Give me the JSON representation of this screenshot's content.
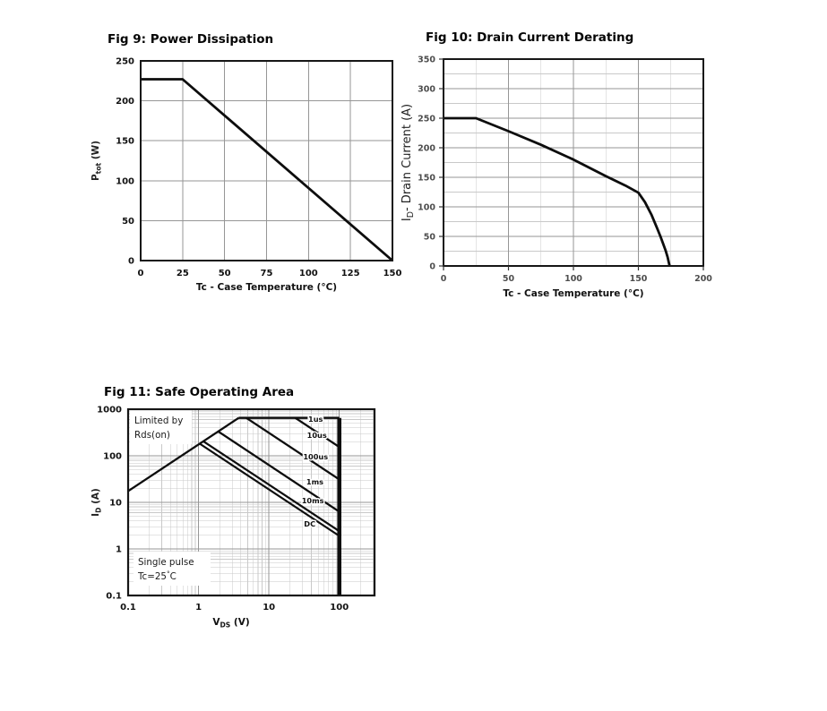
{
  "page": {
    "background": "#ffffff"
  },
  "colors": {
    "curve": "#0d0d0d",
    "border": "#161616",
    "grid_major": "#969696",
    "grid_minor": "#c9c9c9",
    "tick_dark": "#111111",
    "tick_gray": "#4d4d4d",
    "annotation_text": "#1a1a1a"
  },
  "chart_data": [
    {
      "id": "fig9",
      "type": "line",
      "title": "Fig 9: Power Dissipation",
      "xlabel_parts": [
        {
          "t": "Tc - Case Temperature (°C)"
        }
      ],
      "ylabel_parts": [
        {
          "t": "P"
        },
        {
          "t": "tot",
          "sub": true
        },
        {
          "t": " (W)"
        }
      ],
      "xlim": [
        0,
        150
      ],
      "ylim": [
        0,
        250
      ],
      "xticks": [
        {
          "v": 0,
          "l": "0"
        },
        {
          "v": 25,
          "l": "25"
        },
        {
          "v": 50,
          "l": "50"
        },
        {
          "v": 75,
          "l": "75"
        },
        {
          "v": 100,
          "l": "100"
        },
        {
          "v": 125,
          "l": "125"
        },
        {
          "v": 150,
          "l": "150"
        }
      ],
      "yticks": [
        {
          "v": 0,
          "l": "0"
        },
        {
          "v": 50,
          "l": "50"
        },
        {
          "v": 100,
          "l": "100"
        },
        {
          "v": 150,
          "l": "150"
        },
        {
          "v": 200,
          "l": "200"
        },
        {
          "v": 250,
          "l": "250"
        }
      ],
      "grid": "major-only",
      "series": [
        {
          "name": "power-dissipation",
          "points": [
            [
              0,
              227
            ],
            [
              25,
              227
            ],
            [
              150,
              0
            ]
          ]
        }
      ]
    },
    {
      "id": "fig10",
      "type": "line",
      "title": "Fig 10: Drain Current Derating",
      "xlabel_parts": [
        {
          "t": "Tc - Case Temperature (°C)"
        }
      ],
      "ylabel_parts": [
        {
          "t": "I"
        },
        {
          "t": "D",
          "sub": true
        },
        {
          "t": "- Drain Current (A)"
        }
      ],
      "xlim": [
        0,
        200
      ],
      "ylim": [
        0,
        350
      ],
      "xticks": [
        {
          "v": 0,
          "l": "0"
        },
        {
          "v": 50,
          "l": "50"
        },
        {
          "v": 100,
          "l": "100"
        },
        {
          "v": 150,
          "l": "150"
        },
        {
          "v": 200,
          "l": "200"
        }
      ],
      "yticks": [
        {
          "v": 0,
          "l": "0"
        },
        {
          "v": 50,
          "l": "50"
        },
        {
          "v": 100,
          "l": "100"
        },
        {
          "v": 150,
          "l": "150"
        },
        {
          "v": 200,
          "l": "200"
        },
        {
          "v": 250,
          "l": "250"
        },
        {
          "v": 300,
          "l": "300"
        },
        {
          "v": 350,
          "l": "350"
        }
      ],
      "minor_step_x": 25,
      "minor_step_y": 25,
      "grid": "major-minor",
      "series": [
        {
          "name": "drain-current-derating",
          "points": [
            [
              0,
              250
            ],
            [
              25,
              250
            ],
            [
              50,
              228
            ],
            [
              75,
              205
            ],
            [
              100,
              180
            ],
            [
              125,
              152
            ],
            [
              140,
              136
            ],
            [
              150,
              124
            ],
            [
              155,
              108
            ],
            [
              160,
              87
            ],
            [
              164,
              66
            ],
            [
              167,
              50
            ],
            [
              169,
              38
            ],
            [
              171,
              26
            ],
            [
              172.5,
              15
            ],
            [
              174,
              0
            ]
          ]
        }
      ]
    },
    {
      "id": "fig11",
      "type": "line",
      "scale": "log",
      "title": "Fig 11: Safe Operating Area",
      "xlabel_parts": [
        {
          "t": "V"
        },
        {
          "t": "DS",
          "sub": true
        },
        {
          "t": " (V)"
        }
      ],
      "ylabel_parts": [
        {
          "t": "I"
        },
        {
          "t": "D",
          "sub": true
        },
        {
          "t": " (A)"
        }
      ],
      "xlim": [
        0.1,
        316
      ],
      "ylim": [
        0.1,
        1000
      ],
      "xticks": [
        {
          "v": 0.1,
          "l": "0.1"
        },
        {
          "v": 1,
          "l": "1"
        },
        {
          "v": 10,
          "l": "10"
        },
        {
          "v": 100,
          "l": "100"
        }
      ],
      "yticks": [
        {
          "v": 0.1,
          "l": "0.1"
        },
        {
          "v": 1,
          "l": "1"
        },
        {
          "v": 10,
          "l": "10"
        },
        {
          "v": 100,
          "l": "100"
        },
        {
          "v": 1000,
          "l": "1000"
        }
      ],
      "grid": "log-full",
      "series": [
        {
          "name": "rds-on-limit",
          "points": [
            [
              0.1,
              17.5
            ],
            [
              3.72,
              650
            ]
          ]
        },
        {
          "name": "pulse-1us",
          "points": [
            [
              3.72,
              650
            ],
            [
              100,
              650
            ]
          ],
          "label": {
            "text": "1us",
            "x": 46,
            "y": 540
          }
        },
        {
          "name": "pulse-10us",
          "points": [
            [
              23.7,
              650
            ],
            [
              100,
              154
            ]
          ],
          "label": {
            "text": "10us",
            "x": 48,
            "y": 245
          }
        },
        {
          "name": "pulse-100us",
          "points": [
            [
              4.77,
              650
            ],
            [
              100,
              31
            ]
          ],
          "label": {
            "text": "100us",
            "x": 46,
            "y": 84
          }
        },
        {
          "name": "pulse-1ms",
          "points": [
            [
              1.9,
              333
            ],
            [
              100,
              6.3
            ]
          ],
          "label": {
            "text": "1ms",
            "x": 45,
            "y": 24
          }
        },
        {
          "name": "pulse-10ms",
          "points": [
            [
              1.17,
              205
            ],
            [
              100,
              2.4
            ]
          ],
          "label": {
            "text": "10ms",
            "x": 42,
            "y": 9.5
          }
        },
        {
          "name": "dc",
          "points": [
            [
              1.04,
              182
            ],
            [
              100,
              1.9
            ]
          ],
          "label": {
            "text": "DC",
            "x": 38,
            "y": 3.0
          }
        },
        {
          "name": "voltage-limit",
          "points": [
            [
              100,
              650
            ],
            [
              100,
              0.1
            ]
          ]
        }
      ],
      "annotations": [
        {
          "name": "rds-limit-note",
          "lines": [
            [
              {
                "t": "Limited by"
              }
            ],
            [
              {
                "t": "Rds(on)"
              }
            ]
          ]
        },
        {
          "name": "pulse-condition-note",
          "lines": [
            [
              {
                "t": "Single pulse"
              }
            ],
            [
              {
                "t": "Tc=25"
              },
              {
                "t": "°",
                "sup": true
              },
              {
                "t": "C"
              }
            ]
          ]
        }
      ]
    }
  ]
}
